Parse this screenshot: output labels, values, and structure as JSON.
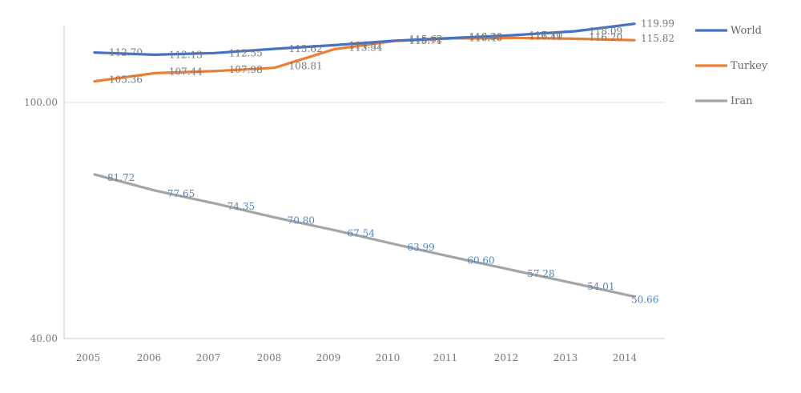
{
  "chart_data": {
    "type": "line",
    "title": "",
    "xlabel": "",
    "ylabel": "",
    "categories": [
      "2005",
      "2006",
      "2007",
      "2008",
      "2009",
      "2010",
      "2011",
      "2012",
      "2013",
      "2014"
    ],
    "ylim": [
      40,
      120
    ],
    "yticks": [
      "100.00",
      "40.00"
    ],
    "legend_position": "right",
    "series": [
      {
        "name": "World",
        "color": "#4472c4",
        "values": [
          112.7,
          112.13,
          112.55,
          113.62,
          114.57,
          115.71,
          116.4,
          117.1,
          118.09,
          119.99
        ],
        "labels": [
          "112.70",
          "112.13",
          "112.55",
          "113.62",
          "114.57",
          "115.71",
          "116.40",
          "117.10",
          "118.09",
          "119.99"
        ]
      },
      {
        "name": "Turkey",
        "color": "#ed7d31",
        "values": [
          105.36,
          107.44,
          107.98,
          108.81,
          113.54,
          115.62,
          116.3,
          116.41,
          116.2,
          115.82
        ],
        "labels": [
          "105.36",
          "107.44",
          "107.98",
          "108.81",
          "113.54",
          "115.62",
          "116.30",
          "116.41",
          "116.20",
          "115.82"
        ]
      },
      {
        "name": "Iran",
        "color": "#a5a5a5",
        "label_color": "#4a86c5",
        "values": [
          81.72,
          77.65,
          74.35,
          70.8,
          67.54,
          63.99,
          60.6,
          57.28,
          54.01,
          50.66
        ],
        "labels": [
          "81.72",
          "77.65",
          "74.35",
          "70.80",
          "67.54",
          "63.99",
          "60.60",
          "57.28",
          "54.01",
          "50.66"
        ]
      }
    ]
  }
}
